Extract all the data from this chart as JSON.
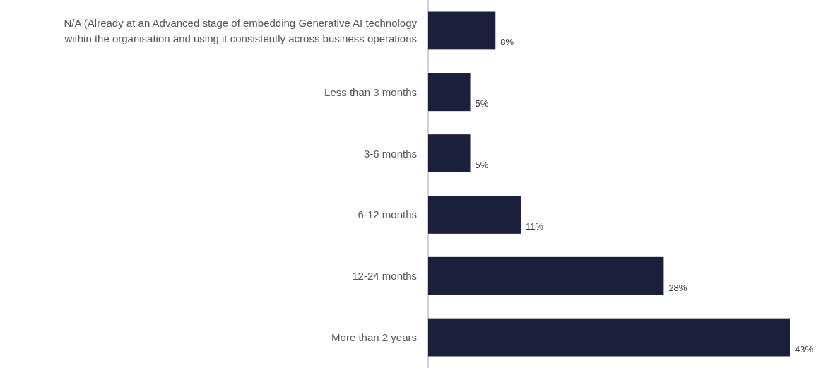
{
  "chart_data": {
    "type": "bar",
    "orientation": "horizontal",
    "categories": [
      "N/A (Already at an Advanced stage of embedding Generative AI technology within the organisation and using it consistently across business operations",
      "Less than 3 months",
      "3-6 months",
      "6-12 months",
      "12-24 months",
      "More than 2 years"
    ],
    "values": [
      8,
      5,
      5,
      11,
      28,
      43
    ],
    "value_labels": [
      "8%",
      "5%",
      "5%",
      "11%",
      "28%",
      "43%"
    ],
    "color": "#1b1f3b"
  }
}
